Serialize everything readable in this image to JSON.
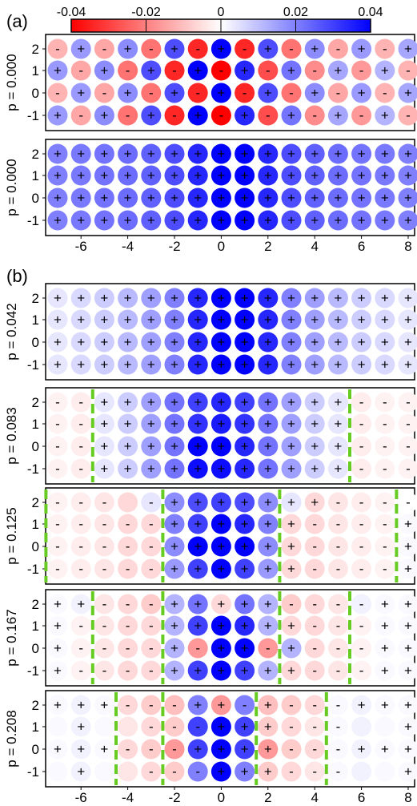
{
  "panel_labels": {
    "a": "(a)",
    "b": "(b)"
  },
  "colorbar": {
    "ticks": [
      "-0.04",
      "-0.02",
      "0",
      "0.02",
      "0.04"
    ],
    "min": -0.04,
    "max": 0.04,
    "neg_color": "#ff0000",
    "pos_color": "#0000ff",
    "mid_color": "#ffffff"
  },
  "colors": {
    "domain_wall": "#66cc22",
    "frame": "#000000"
  },
  "x_ticks": [
    "-6",
    "-4",
    "-2",
    "0",
    "2",
    "4",
    "6",
    "8"
  ],
  "y_ticks": [
    "2",
    "1",
    "0",
    "-1"
  ],
  "chart_data": [
    {
      "type": "heatmap",
      "panel": "a-top",
      "ylabel": "p = 0.000",
      "x": [
        -7,
        -6,
        -5,
        -4,
        -3,
        -2,
        -1,
        0,
        1,
        2,
        3,
        4,
        5,
        6,
        7,
        8
      ],
      "y": [
        2,
        1,
        0,
        -1
      ],
      "signs": [
        "-+-+-+-+-+-+-+-+",
        "+-+-+-+-+-+-+-+-",
        "-+-+-+-+-+-+-+-+",
        "+-+-+-+-+-+-+-+-"
      ],
      "values": [
        [
          -0.012,
          0.016,
          -0.014,
          0.018,
          -0.022,
          0.028,
          -0.034,
          0.04,
          -0.034,
          0.028,
          -0.022,
          0.018,
          -0.014,
          0.016,
          -0.012,
          0.014
        ],
        [
          0.016,
          -0.014,
          0.018,
          -0.022,
          0.028,
          -0.034,
          0.04,
          -0.04,
          0.034,
          -0.028,
          0.022,
          -0.018,
          0.014,
          -0.016,
          0.012,
          -0.012
        ],
        [
          -0.012,
          0.016,
          -0.014,
          0.018,
          -0.022,
          0.028,
          -0.034,
          0.04,
          -0.034,
          0.028,
          -0.022,
          0.018,
          -0.014,
          0.016,
          -0.012,
          0.014
        ],
        [
          0.016,
          -0.014,
          0.018,
          -0.022,
          0.028,
          -0.034,
          0.04,
          -0.04,
          0.034,
          -0.028,
          0.022,
          -0.018,
          0.014,
          -0.016,
          0.012,
          -0.012
        ]
      ],
      "walls": []
    },
    {
      "type": "heatmap",
      "panel": "a-bottom",
      "ylabel": "p = 0.000",
      "x": [
        -7,
        -6,
        -5,
        -4,
        -3,
        -2,
        -1,
        0,
        1,
        2,
        3,
        4,
        5,
        6,
        7,
        8
      ],
      "y": [
        2,
        1,
        0,
        -1
      ],
      "signs": [
        "++++++++++++++++",
        "++++++++++++++++",
        "++++++++++++++++",
        "++++++++++++++++"
      ],
      "values": [
        [
          0.02,
          0.021,
          0.022,
          0.023,
          0.025,
          0.028,
          0.034,
          0.04,
          0.04,
          0.034,
          0.028,
          0.025,
          0.023,
          0.022,
          0.021,
          0.02
        ],
        [
          0.02,
          0.021,
          0.022,
          0.023,
          0.025,
          0.028,
          0.034,
          0.04,
          0.04,
          0.034,
          0.028,
          0.025,
          0.023,
          0.022,
          0.021,
          0.02
        ],
        [
          0.02,
          0.021,
          0.022,
          0.023,
          0.025,
          0.028,
          0.034,
          0.04,
          0.04,
          0.034,
          0.028,
          0.025,
          0.023,
          0.022,
          0.021,
          0.02
        ],
        [
          0.02,
          0.021,
          0.022,
          0.023,
          0.025,
          0.028,
          0.034,
          0.04,
          0.04,
          0.034,
          0.028,
          0.025,
          0.023,
          0.022,
          0.021,
          0.02
        ]
      ],
      "walls": []
    },
    {
      "type": "heatmap",
      "panel": "b1",
      "ylabel": "p = 0.042",
      "x": [
        -7,
        -6,
        -5,
        -4,
        -3,
        -2,
        -1,
        0,
        1,
        2,
        3,
        4,
        5,
        6,
        7,
        8
      ],
      "y": [
        2,
        1,
        0,
        -1
      ],
      "signs": [
        "++++++++++++++++",
        "++++++++++++++++",
        "++++++++++++++++",
        "++++++++++++++++"
      ],
      "values": [
        [
          0.004,
          0.006,
          0.008,
          0.011,
          0.015,
          0.02,
          0.034,
          0.04,
          0.04,
          0.034,
          0.02,
          0.015,
          0.011,
          0.008,
          0.006,
          0.004
        ],
        [
          0.004,
          0.006,
          0.008,
          0.011,
          0.015,
          0.02,
          0.034,
          0.04,
          0.04,
          0.034,
          0.02,
          0.015,
          0.011,
          0.008,
          0.006,
          0.004
        ],
        [
          0.004,
          0.006,
          0.008,
          0.011,
          0.015,
          0.02,
          0.034,
          0.04,
          0.04,
          0.034,
          0.02,
          0.015,
          0.011,
          0.008,
          0.006,
          0.004
        ],
        [
          0.004,
          0.006,
          0.008,
          0.011,
          0.015,
          0.02,
          0.034,
          0.04,
          0.04,
          0.034,
          0.02,
          0.015,
          0.011,
          0.008,
          0.006,
          0.004
        ]
      ],
      "walls": []
    },
    {
      "type": "heatmap",
      "panel": "b2",
      "ylabel": "p = 0.083",
      "x": [
        -7,
        -6,
        -5,
        -4,
        -3,
        -2,
        -1,
        0,
        1,
        2,
        3,
        4,
        5,
        6,
        7,
        8
      ],
      "y": [
        2,
        1,
        0,
        -1
      ],
      "signs": [
        "--+++++++++++---",
        "--+++++++++++---",
        "--+++++++++++---",
        "--+++++++++++---"
      ],
      "values": [
        [
          -0.002,
          -0.003,
          0.004,
          0.008,
          0.015,
          0.022,
          0.03,
          0.034,
          0.03,
          0.022,
          0.015,
          0.008,
          0.004,
          -0.003,
          -0.002,
          -0.002
        ],
        [
          -0.002,
          -0.003,
          0.004,
          0.008,
          0.015,
          0.022,
          0.032,
          0.036,
          0.032,
          0.022,
          0.015,
          0.008,
          0.004,
          -0.003,
          -0.002,
          -0.002
        ],
        [
          -0.002,
          -0.003,
          0.004,
          0.008,
          0.015,
          0.022,
          0.04,
          0.04,
          0.034,
          0.022,
          0.015,
          0.008,
          0.004,
          -0.003,
          -0.002,
          -0.002
        ],
        [
          -0.002,
          -0.003,
          0.004,
          0.008,
          0.015,
          0.022,
          0.038,
          0.038,
          0.034,
          0.022,
          0.015,
          0.008,
          0.004,
          -0.003,
          -0.002,
          -0.002
        ]
      ],
      "walls": [
        -5.5,
        5.5
      ]
    },
    {
      "type": "heatmap",
      "panel": "b3",
      "ylabel": "p = 0.125",
      "x": [
        -7,
        -6,
        -5,
        -4,
        -3,
        -2,
        -1,
        0,
        1,
        2,
        3,
        4,
        5,
        6,
        7,
        8
      ],
      "y": [
        2,
        1,
        0,
        -1
      ],
      "signs": [
        "--- -+++++++----",
        "-----++++++----+",
        "-----++++++----+",
        "-----++++++----+"
      ],
      "values": [
        [
          -0.002,
          -0.003,
          -0.004,
          -0.006,
          0.004,
          0.018,
          0.028,
          0.03,
          0.028,
          0.018,
          0.004,
          -0.006,
          -0.004,
          -0.003,
          -0.002,
          0.0
        ],
        [
          -0.002,
          -0.003,
          -0.004,
          -0.006,
          -0.006,
          0.02,
          0.03,
          0.04,
          0.034,
          0.02,
          -0.006,
          -0.006,
          -0.004,
          -0.003,
          -0.002,
          0.001
        ],
        [
          -0.002,
          -0.003,
          -0.004,
          -0.006,
          -0.006,
          0.018,
          0.04,
          0.04,
          0.04,
          0.018,
          -0.006,
          -0.006,
          -0.004,
          -0.003,
          -0.002,
          0.001
        ],
        [
          -0.002,
          -0.003,
          -0.004,
          -0.006,
          -0.006,
          0.016,
          0.03,
          0.04,
          0.03,
          0.016,
          -0.006,
          -0.006,
          -0.004,
          -0.003,
          -0.002,
          0.001
        ]
      ],
      "walls": [
        -7.5,
        -2.5,
        2.5,
        7.5
      ]
    },
    {
      "type": "heatmap",
      "panel": "b4",
      "ylabel": "p = 0.167",
      "x": [
        -7,
        -6,
        -5,
        -4,
        -3,
        -2,
        -1,
        0,
        1,
        2,
        3,
        4,
        5,
        6,
        7,
        8
      ],
      "y": [
        2,
        1,
        0,
        -1
      ],
      "signs": [
        "++---+++++----++",
        "+----++++++---++",
        "+----+-++-+---++",
        "+----++++++---++"
      ],
      "values": [
        [
          0.001,
          0.002,
          -0.004,
          -0.006,
          -0.008,
          0.012,
          0.022,
          -0.006,
          0.022,
          0.012,
          -0.008,
          -0.006,
          -0.004,
          0.002,
          0.001,
          0.001
        ],
        [
          0.001,
          -0.002,
          -0.004,
          -0.006,
          -0.006,
          0.012,
          0.03,
          0.04,
          0.034,
          0.012,
          -0.006,
          -0.006,
          -0.004,
          -0.002,
          0.001,
          0.001
        ],
        [
          0.001,
          -0.002,
          -0.004,
          -0.006,
          -0.006,
          0.012,
          -0.016,
          0.04,
          0.04,
          -0.016,
          0.012,
          -0.006,
          -0.004,
          -0.002,
          0.001,
          0.001
        ],
        [
          0.001,
          -0.002,
          -0.004,
          -0.006,
          -0.006,
          0.012,
          0.03,
          0.04,
          0.03,
          0.012,
          -0.006,
          -0.006,
          -0.004,
          -0.002,
          0.001,
          0.001
        ]
      ],
      "walls": [
        -5.5,
        -2.5,
        2.5,
        5.5
      ]
    },
    {
      "type": "heatmap",
      "panel": "b5",
      "ylabel": "p = 0.208",
      "x": [
        -7,
        -6,
        -5,
        -4,
        -3,
        -2,
        -1,
        0,
        1,
        2,
        3,
        4,
        5,
        6,
        7,
        8
      ],
      "y": [
        2,
        1,
        0,
        -1
      ],
      "signs": [
        "+++---++-+---+++",
        " +  ---+++---  +",
        "+++---++++---+++",
        " +  ---+++---  +"
      ],
      "values": [
        [
          0.001,
          0.002,
          0.001,
          -0.006,
          -0.008,
          -0.01,
          0.02,
          -0.016,
          0.02,
          -0.01,
          -0.008,
          -0.006,
          0.001,
          0.002,
          0.001,
          0.001
        ],
        [
          0.001,
          0.002,
          0.001,
          -0.004,
          -0.006,
          -0.008,
          0.03,
          0.04,
          0.03,
          -0.008,
          -0.006,
          -0.004,
          0.001,
          0.002,
          0.001,
          0.001
        ],
        [
          0.001,
          0.002,
          0.001,
          -0.006,
          -0.008,
          -0.016,
          0.03,
          0.04,
          0.03,
          -0.016,
          -0.008,
          -0.006,
          0.001,
          0.002,
          0.001,
          0.001
        ],
        [
          0.001,
          0.002,
          0.001,
          -0.004,
          -0.006,
          -0.008,
          0.02,
          0.04,
          0.02,
          -0.008,
          -0.006,
          -0.004,
          0.001,
          0.002,
          0.001,
          0.001
        ]
      ],
      "walls": [
        -4.5,
        -2.5,
        1.5,
        4.5
      ]
    }
  ]
}
